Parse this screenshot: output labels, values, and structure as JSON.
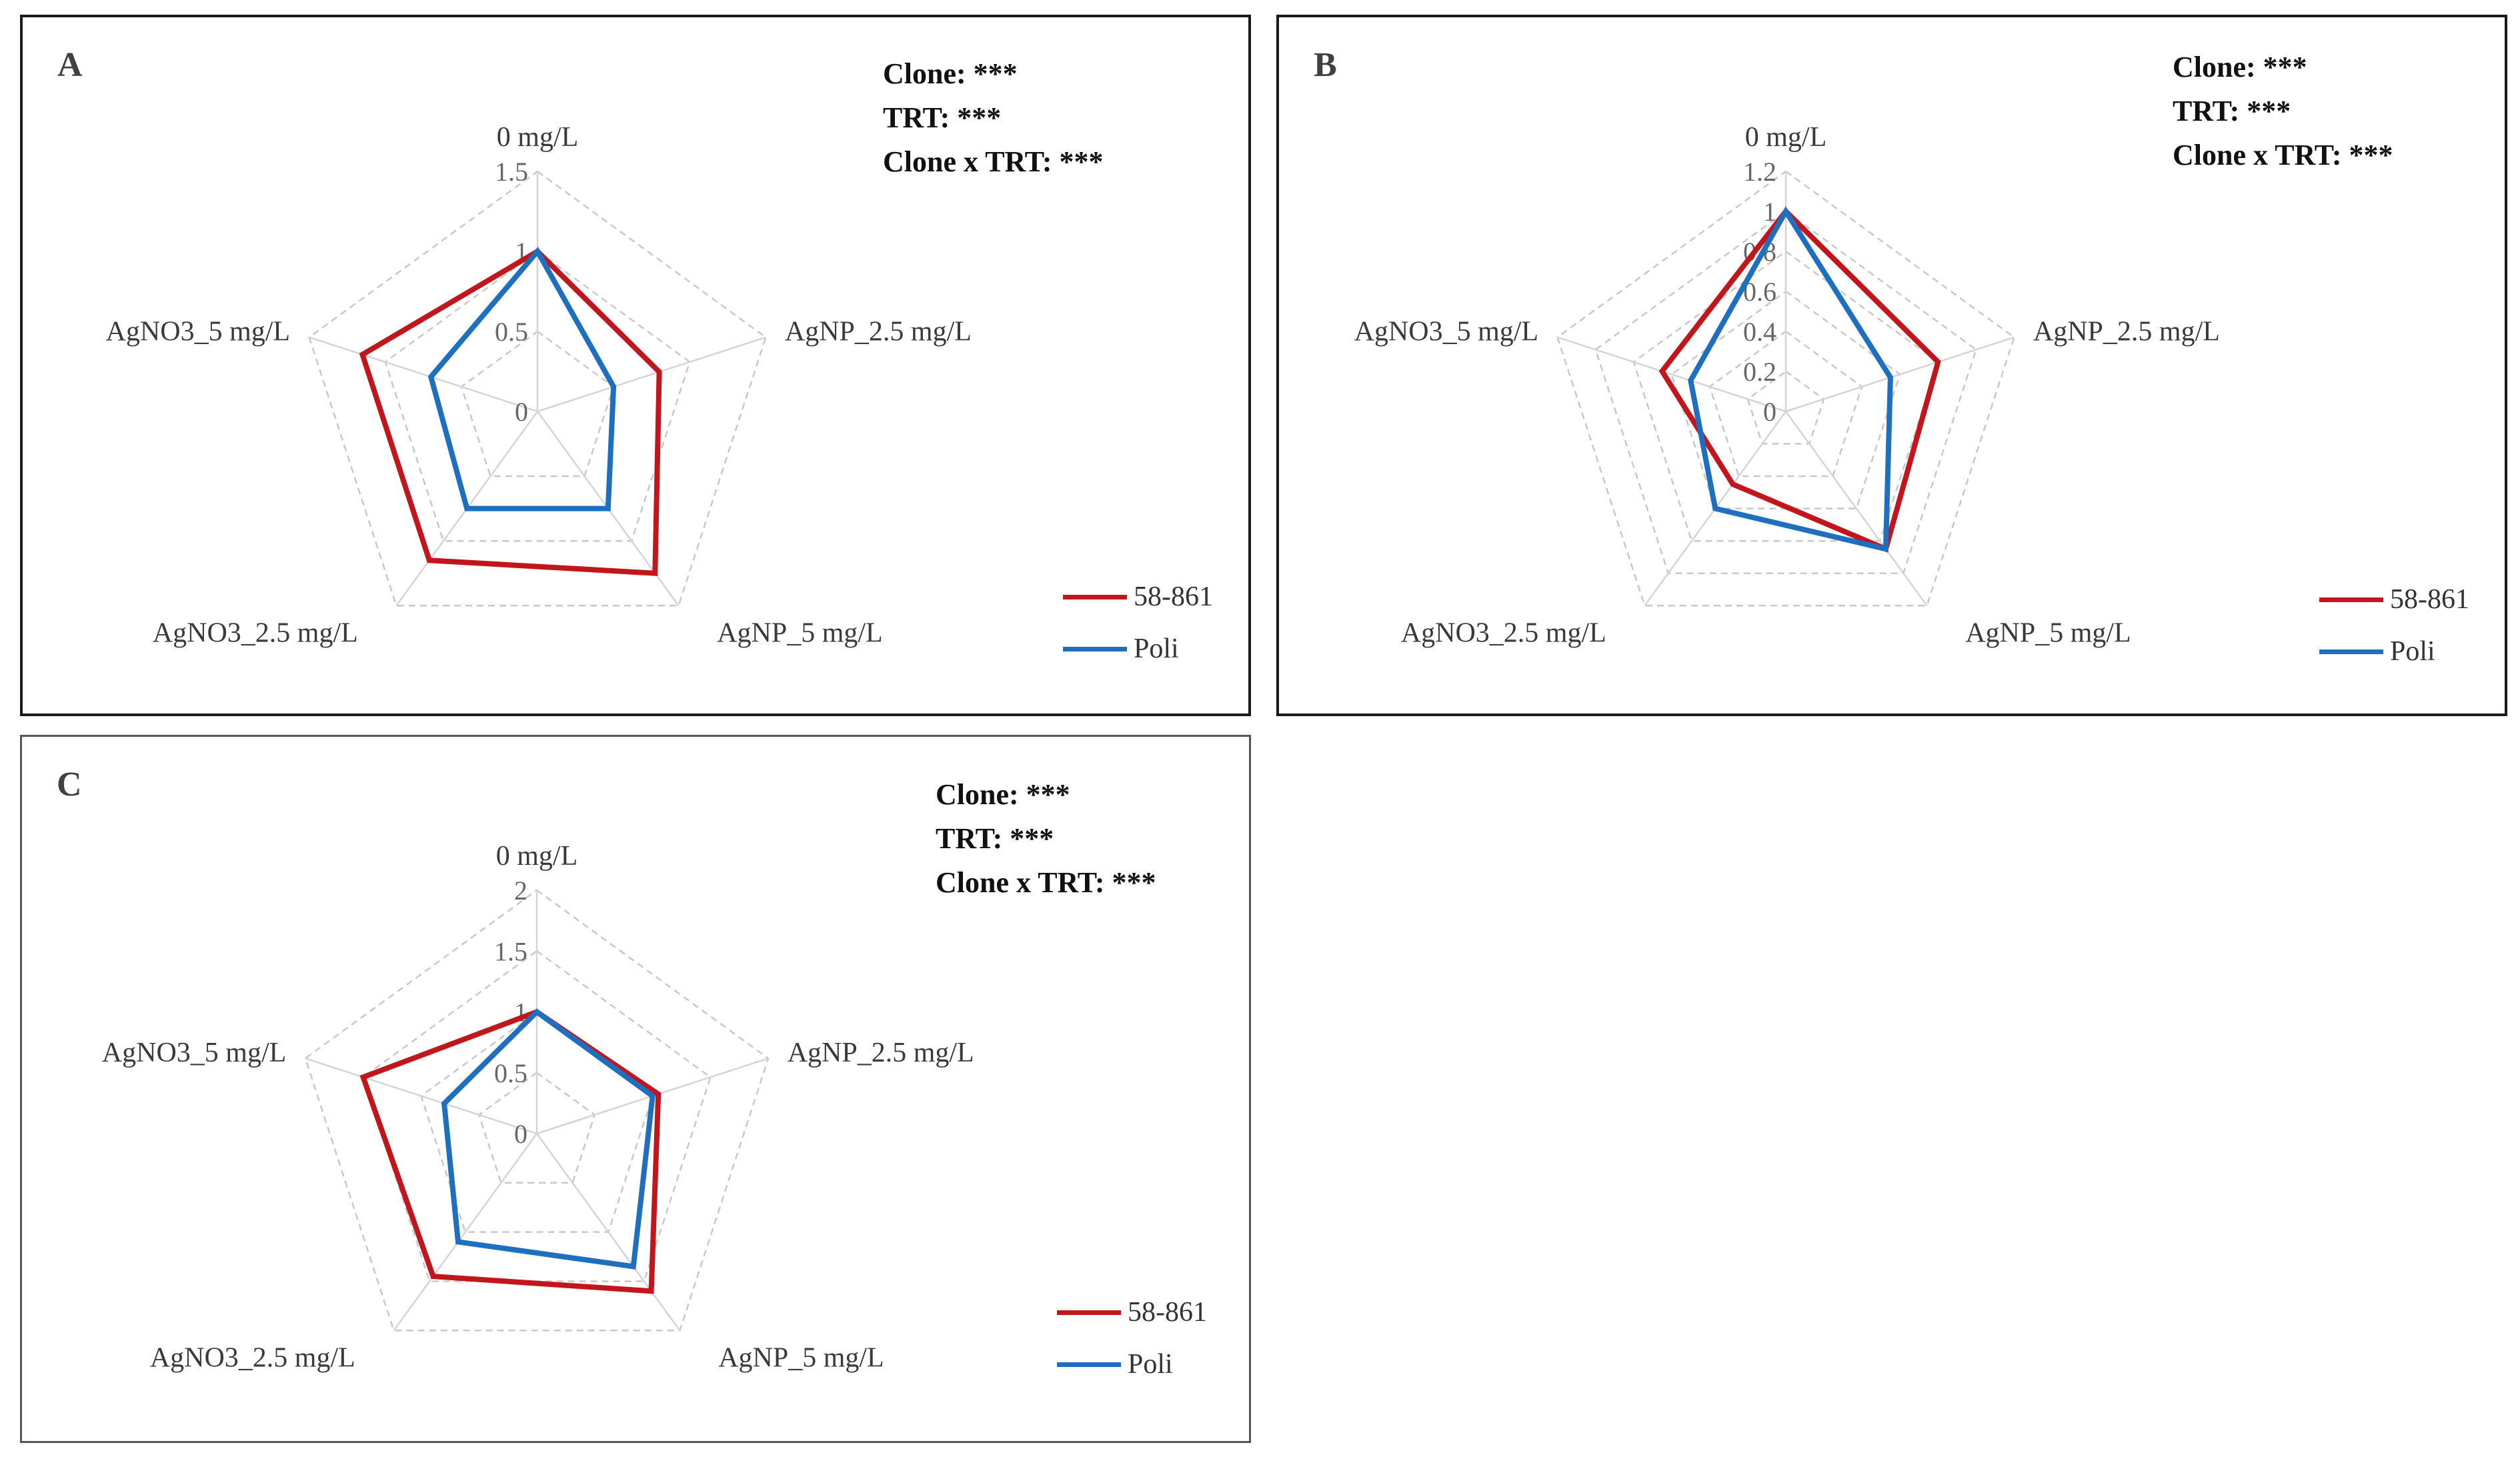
{
  "colors": {
    "series_58_861": "#c0161c",
    "series_poli": "#1f6fbf",
    "grid": "#c8c8c8"
  },
  "chart_data": [
    {
      "type": "radar",
      "panel_label": "A",
      "stats": [
        "Clone: ***",
        "TRT: ***",
        "Clone x TRT: ***"
      ],
      "categories": [
        "0 mg/L",
        "AgNP_2.5 mg/L",
        "AgNP_5 mg/L",
        "AgNO3_2.5 mg/L",
        "AgNO3_5 mg/L"
      ],
      "ticks": [
        "0",
        "0.5",
        "1",
        "1.5"
      ],
      "rmax": 1.5,
      "series": [
        {
          "name": "58-861",
          "values": [
            1.0,
            0.8,
            1.25,
            1.15,
            1.15
          ]
        },
        {
          "name": "Poli",
          "values": [
            1.0,
            0.5,
            0.75,
            0.75,
            0.7
          ]
        }
      ]
    },
    {
      "type": "radar",
      "panel_label": "B",
      "stats": [
        "Clone: ***",
        "TRT: ***",
        "Clone x TRT: ***"
      ],
      "categories": [
        "0 mg/L",
        "AgNP_2.5 mg/L",
        "AgNP_5 mg/L",
        "AgNO3_2.5 mg/L",
        "AgNO3_5 mg/L"
      ],
      "ticks": [
        "0",
        "0.2",
        "0.4",
        "0.6",
        "0.8",
        "1",
        "1.2"
      ],
      "rmax": 1.2,
      "series": [
        {
          "name": "58-861",
          "values": [
            1.0,
            0.8,
            0.85,
            0.45,
            0.65
          ]
        },
        {
          "name": "Poli",
          "values": [
            1.0,
            0.55,
            0.85,
            0.6,
            0.5
          ]
        }
      ]
    },
    {
      "type": "radar",
      "panel_label": "C",
      "stats": [
        "Clone: ***",
        "TRT: ***",
        "Clone x TRT: ***"
      ],
      "categories": [
        "0 mg/L",
        "AgNP_2.5 mg/L",
        "AgNP_5 mg/L",
        "AgNO3_2.5 mg/L",
        "AgNO3_5 mg/L"
      ],
      "ticks": [
        "0",
        "0.5",
        "1",
        "1.5",
        "2"
      ],
      "rmax": 2,
      "series": [
        {
          "name": "58-861",
          "values": [
            1.0,
            1.05,
            1.6,
            1.45,
            1.5
          ]
        },
        {
          "name": "Poli",
          "values": [
            1.0,
            1.0,
            1.35,
            1.1,
            0.8
          ]
        }
      ]
    }
  ]
}
